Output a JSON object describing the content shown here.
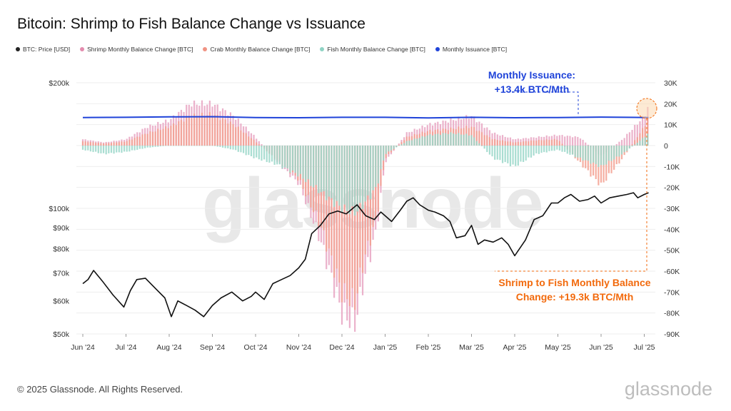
{
  "title": "Bitcoin: Shrimp to Fish Balance Change vs Issuance",
  "legend": [
    {
      "label": "BTC: Price [USD]",
      "color": "#222222"
    },
    {
      "label": "Shrimp Monthly Balance Change [BTC]",
      "color": "#e38cae"
    },
    {
      "label": "Crab Monthly Balance Change [BTC]",
      "color": "#f09383"
    },
    {
      "label": "Fish Monthly Balance Change [BTC]",
      "color": "#8fd3c4"
    },
    {
      "label": "Monthly Issuance [BTC]",
      "color": "#1f43d9"
    }
  ],
  "annotations": {
    "issuance": [
      "Monthly Issuance:",
      "+13.4k BTC/Mth"
    ],
    "shrimp": [
      "Shrimp to Fish Monthly Balance",
      "Change: +19.3k BTC/Mth"
    ]
  },
  "watermark": "glassnode",
  "footer": "© 2025 Glassnode. All Rights Reserved.",
  "brand": "glassnode",
  "chart_data": {
    "type": "bar",
    "x_tick_labels": [
      "Jun '24",
      "Jul '24",
      "Aug '24",
      "Sep '24",
      "Oct '24",
      "Nov '24",
      "Dec '24",
      "Jan '25",
      "Feb '25",
      "Mar '25",
      "Apr '25",
      "May '25",
      "Jun '25",
      "Jul '25"
    ],
    "y_left": {
      "scale": "log",
      "ticks": [
        "$50k",
        "$60k",
        "$70k",
        "$80k",
        "$90k",
        "$100k",
        "$200k"
      ],
      "values": [
        50000,
        60000,
        70000,
        80000,
        90000,
        100000,
        200000
      ]
    },
    "y_right": {
      "ticks": [
        "30K",
        "20K",
        "10K",
        "0",
        "-10K",
        "-20K",
        "-30K",
        "-40K",
        "-50K",
        "-60K",
        "-70K",
        "-80K",
        "-90K"
      ],
      "range": [
        -90000,
        30000
      ]
    },
    "price_usd": [
      [
        0,
        66000
      ],
      [
        0.12,
        67500
      ],
      [
        0.25,
        71000
      ],
      [
        0.45,
        67000
      ],
      [
        0.7,
        62000
      ],
      [
        0.95,
        58000
      ],
      [
        1.1,
        63500
      ],
      [
        1.25,
        67500
      ],
      [
        1.45,
        68000
      ],
      [
        1.7,
        64000
      ],
      [
        1.9,
        61000
      ],
      [
        2.05,
        55000
      ],
      [
        2.2,
        60000
      ],
      [
        2.4,
        58500
      ],
      [
        2.6,
        57000
      ],
      [
        2.8,
        55000
      ],
      [
        3.0,
        58500
      ],
      [
        3.2,
        61000
      ],
      [
        3.45,
        63000
      ],
      [
        3.7,
        60000
      ],
      [
        3.9,
        61500
      ],
      [
        4.0,
        63000
      ],
      [
        4.2,
        60500
      ],
      [
        4.4,
        66000
      ],
      [
        4.6,
        67500
      ],
      [
        4.8,
        69000
      ],
      [
        5.0,
        72000
      ],
      [
        5.15,
        75500
      ],
      [
        5.3,
        87000
      ],
      [
        5.5,
        91000
      ],
      [
        5.7,
        97000
      ],
      [
        5.9,
        98500
      ],
      [
        6.1,
        97000
      ],
      [
        6.35,
        102000
      ],
      [
        6.55,
        96000
      ],
      [
        6.75,
        94000
      ],
      [
        6.9,
        98000
      ],
      [
        7.0,
        96000
      ],
      [
        7.15,
        93000
      ],
      [
        7.35,
        99000
      ],
      [
        7.5,
        104000
      ],
      [
        7.65,
        106000
      ],
      [
        7.8,
        102000
      ],
      [
        8.0,
        99000
      ],
      [
        8.15,
        98000
      ],
      [
        8.35,
        96000
      ],
      [
        8.5,
        93000
      ],
      [
        8.65,
        85000
      ],
      [
        8.85,
        86000
      ],
      [
        9.0,
        91000
      ],
      [
        9.15,
        82000
      ],
      [
        9.3,
        84000
      ],
      [
        9.5,
        83000
      ],
      [
        9.7,
        85000
      ],
      [
        9.85,
        82000
      ],
      [
        10.0,
        77000
      ],
      [
        10.25,
        84000
      ],
      [
        10.45,
        94000
      ],
      [
        10.65,
        96000
      ],
      [
        10.85,
        103000
      ],
      [
        11.0,
        103000
      ],
      [
        11.15,
        106000
      ],
      [
        11.3,
        108000
      ],
      [
        11.5,
        104000
      ],
      [
        11.7,
        105000
      ],
      [
        11.85,
        107000
      ],
      [
        12.0,
        103000
      ],
      [
        12.2,
        106000
      ],
      [
        12.4,
        107000
      ],
      [
        12.6,
        108000
      ],
      [
        12.75,
        109000
      ],
      [
        12.85,
        106000
      ],
      [
        13.0,
        108000
      ],
      [
        13.1,
        109000
      ]
    ],
    "monthly_issuance_btc": [
      [
        0,
        13400
      ],
      [
        1.0,
        13500
      ],
      [
        2.0,
        13700
      ],
      [
        3.0,
        13800
      ],
      [
        4.0,
        13400
      ],
      [
        5.0,
        13300
      ],
      [
        6.0,
        13500
      ],
      [
        7.0,
        13500
      ],
      [
        8.0,
        13200
      ],
      [
        9.0,
        13500
      ],
      [
        10.0,
        13300
      ],
      [
        11.0,
        13400
      ],
      [
        12.0,
        13600
      ],
      [
        13.1,
        13400
      ]
    ],
    "monthly_balance_change_btc": {
      "x": [
        0,
        0.5,
        1.0,
        1.5,
        2.0,
        2.5,
        3.0,
        3.5,
        4.0,
        4.5,
        5.0,
        5.5,
        6.0,
        6.3,
        6.5,
        6.8,
        7.0,
        7.5,
        8.0,
        8.5,
        9.0,
        9.5,
        10.0,
        10.5,
        11.0,
        11.5,
        12.0,
        12.5,
        13.0,
        13.1
      ],
      "shrimp": [
        3000,
        1500,
        3000,
        9000,
        12000,
        20000,
        20000,
        14000,
        4000,
        -8000,
        -18000,
        -45000,
        -80000,
        -85000,
        -65000,
        -40000,
        -8000,
        6000,
        10000,
        12000,
        14000,
        6000,
        3000,
        4000,
        5000,
        4000,
        -5000,
        3000,
        14000,
        19300
      ],
      "crab": [
        2000,
        1000,
        2000,
        6000,
        9000,
        14000,
        15000,
        10000,
        2000,
        -7000,
        -16000,
        -38000,
        -70000,
        -75000,
        -55000,
        -35000,
        -6000,
        4000,
        7000,
        8000,
        9000,
        3000,
        1500,
        2500,
        3000,
        -8000,
        -19000,
        -6000,
        9000,
        14000
      ],
      "fish": [
        -2000,
        -4000,
        -3000,
        -1000,
        0,
        0,
        0,
        -2000,
        -6000,
        -9000,
        -14000,
        -22000,
        -30000,
        -32000,
        -28000,
        -20000,
        -4000,
        2000,
        5000,
        6000,
        5000,
        -6000,
        -10000,
        -4000,
        -2000,
        -6000,
        -10000,
        -4000,
        4000,
        6000
      ]
    }
  }
}
